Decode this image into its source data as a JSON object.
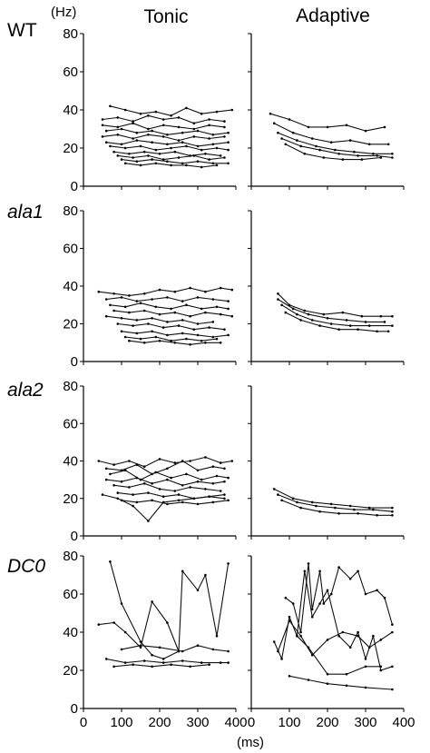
{
  "y_unit": "(Hz)",
  "x_unit": "(ms)",
  "column_titles": [
    "Tonic",
    "Adaptive"
  ],
  "row_labels": [
    "WT",
    "ala1",
    "ala2",
    "DC0"
  ],
  "x_ticks": [
    "0",
    "100",
    "200",
    "300",
    "400"
  ],
  "y_ticks": [
    "0",
    "20",
    "40",
    "60",
    "80"
  ],
  "chart_data": [
    {
      "type": "line",
      "row": "WT",
      "column": "Tonic",
      "xlim": [
        0,
        400
      ],
      "ylim": [
        0,
        80
      ],
      "grid": false,
      "series": [
        {
          "x": [
            70,
            110,
            150,
            190,
            230,
            270,
            310,
            350,
            390
          ],
          "values": [
            42,
            40,
            38,
            39,
            37,
            41,
            38,
            39,
            40
          ]
        },
        {
          "x": [
            50,
            90,
            130,
            170,
            210,
            250,
            290,
            330,
            370
          ],
          "values": [
            35,
            36,
            34,
            37,
            35,
            36,
            33,
            35,
            34
          ]
        },
        {
          "x": [
            50,
            90,
            130,
            170,
            210,
            250,
            290,
            330,
            370
          ],
          "values": [
            32,
            31,
            33,
            30,
            32,
            31,
            30,
            32,
            31
          ]
        },
        {
          "x": [
            60,
            100,
            140,
            180,
            220,
            260,
            300,
            340,
            380
          ],
          "values": [
            29,
            30,
            28,
            29,
            27,
            28,
            29,
            27,
            28
          ]
        },
        {
          "x": [
            50,
            90,
            130,
            170,
            210,
            250,
            290,
            330,
            370
          ],
          "values": [
            26,
            27,
            25,
            27,
            26,
            24,
            26,
            25,
            26
          ]
        },
        {
          "x": [
            60,
            100,
            140,
            180,
            220,
            260,
            300,
            340,
            380
          ],
          "values": [
            23,
            22,
            24,
            23,
            22,
            23,
            21,
            22,
            23
          ]
        },
        {
          "x": [
            70,
            110,
            150,
            190,
            230,
            270,
            310,
            350,
            380
          ],
          "values": [
            21,
            20,
            21,
            19,
            20,
            21,
            19,
            20,
            19
          ]
        },
        {
          "x": [
            80,
            120,
            160,
            200,
            240,
            280,
            320,
            360
          ],
          "values": [
            18,
            17,
            18,
            17,
            18,
            16,
            17,
            16
          ]
        },
        {
          "x": [
            90,
            130,
            170,
            210,
            250,
            290,
            330,
            370
          ],
          "values": [
            16,
            15,
            16,
            14,
            15,
            16,
            14,
            15
          ]
        },
        {
          "x": [
            100,
            140,
            180,
            220,
            260,
            300,
            340,
            380
          ],
          "values": [
            14,
            13,
            14,
            13,
            12,
            13,
            12,
            12
          ]
        },
        {
          "x": [
            110,
            150,
            190,
            230,
            270,
            310,
            350
          ],
          "values": [
            12,
            11,
            12,
            11,
            11,
            10,
            11
          ]
        }
      ]
    },
    {
      "type": "line",
      "row": "WT",
      "column": "Adaptive",
      "xlim": [
        0,
        400
      ],
      "ylim": [
        0,
        80
      ],
      "grid": false,
      "series": [
        {
          "x": [
            50,
            100,
            150,
            200,
            250,
            300,
            350
          ],
          "values": [
            38,
            35,
            31,
            31,
            32,
            29,
            31
          ]
        },
        {
          "x": [
            60,
            110,
            160,
            210,
            260,
            310,
            360
          ],
          "values": [
            33,
            28,
            25,
            23,
            24,
            22,
            22
          ]
        },
        {
          "x": [
            70,
            120,
            170,
            220,
            270,
            320,
            370
          ],
          "values": [
            28,
            24,
            21,
            19,
            18,
            17,
            17
          ]
        },
        {
          "x": [
            80,
            130,
            180,
            230,
            280,
            330,
            370
          ],
          "values": [
            25,
            21,
            19,
            17,
            16,
            16,
            15
          ]
        },
        {
          "x": [
            90,
            140,
            190,
            240,
            290,
            340
          ],
          "values": [
            22,
            17,
            15,
            14,
            14,
            15
          ]
        }
      ]
    },
    {
      "type": "line",
      "row": "ala1",
      "column": "Tonic",
      "xlim": [
        0,
        400
      ],
      "ylim": [
        0,
        80
      ],
      "grid": false,
      "series": [
        {
          "x": [
            40,
            80,
            120,
            160,
            200,
            240,
            280,
            320,
            360,
            390
          ],
          "values": [
            37,
            36,
            35,
            36,
            38,
            37,
            39,
            37,
            39,
            38
          ]
        },
        {
          "x": [
            60,
            100,
            140,
            180,
            220,
            260,
            300,
            340,
            380
          ],
          "values": [
            33,
            34,
            32,
            33,
            34,
            32,
            34,
            33,
            32
          ]
        },
        {
          "x": [
            70,
            110,
            150,
            190,
            230,
            270,
            310,
            350,
            380
          ],
          "values": [
            30,
            29,
            31,
            29,
            28,
            30,
            28,
            29,
            28
          ]
        },
        {
          "x": [
            80,
            120,
            160,
            200,
            240,
            280,
            320,
            360,
            390
          ],
          "values": [
            27,
            26,
            27,
            25,
            26,
            24,
            26,
            25,
            24
          ]
        },
        {
          "x": [
            60,
            100,
            140,
            180,
            220,
            260,
            300,
            340
          ],
          "values": [
            24,
            23,
            22,
            23,
            21,
            22,
            20,
            21
          ]
        },
        {
          "x": [
            90,
            130,
            170,
            210,
            250,
            290,
            330,
            370
          ],
          "values": [
            20,
            19,
            20,
            18,
            19,
            17,
            18,
            17
          ]
        },
        {
          "x": [
            100,
            140,
            180,
            220,
            260,
            300,
            340,
            380
          ],
          "values": [
            16,
            15,
            16,
            14,
            15,
            14,
            13,
            14
          ]
        },
        {
          "x": [
            110,
            150,
            190,
            230,
            270,
            310,
            350
          ],
          "values": [
            13,
            12,
            13,
            11,
            12,
            11,
            12
          ]
        },
        {
          "x": [
            120,
            160,
            200,
            240,
            280,
            320,
            360
          ],
          "values": [
            11,
            10,
            11,
            10,
            9,
            10,
            10
          ]
        }
      ]
    },
    {
      "type": "line",
      "row": "ala1",
      "column": "Adaptive",
      "xlim": [
        0,
        400
      ],
      "ylim": [
        0,
        80
      ],
      "grid": false,
      "series": [
        {
          "x": [
            70,
            100,
            140,
            190,
            240,
            290,
            340,
            370
          ],
          "values": [
            36,
            30,
            27,
            25,
            26,
            24,
            24,
            24
          ]
        },
        {
          "x": [
            70,
            110,
            150,
            200,
            250,
            300,
            350
          ],
          "values": [
            33,
            28,
            25,
            23,
            22,
            21,
            21
          ]
        },
        {
          "x": [
            80,
            120,
            160,
            210,
            260,
            310,
            370
          ],
          "values": [
            30,
            25,
            22,
            20,
            19,
            19,
            19
          ]
        },
        {
          "x": [
            90,
            130,
            180,
            230,
            280,
            330,
            360
          ],
          "values": [
            26,
            22,
            19,
            17,
            17,
            16,
            16
          ]
        }
      ]
    },
    {
      "type": "line",
      "row": "ala2",
      "column": "Tonic",
      "xlim": [
        0,
        400
      ],
      "ylim": [
        0,
        80
      ],
      "grid": false,
      "series": [
        {
          "x": [
            40,
            80,
            120,
            160,
            200,
            240,
            280,
            320,
            360,
            390
          ],
          "values": [
            40,
            38,
            40,
            37,
            41,
            39,
            40,
            42,
            39,
            40
          ]
        },
        {
          "x": [
            60,
            100,
            140,
            180,
            220,
            260,
            300,
            340,
            370
          ],
          "values": [
            36,
            35,
            38,
            33,
            36,
            40,
            35,
            37,
            36
          ]
        },
        {
          "x": [
            70,
            110,
            150,
            190,
            230,
            270,
            310,
            350,
            380
          ],
          "values": [
            33,
            35,
            30,
            34,
            31,
            33,
            30,
            32,
            31
          ]
        },
        {
          "x": [
            60,
            100,
            140,
            180,
            220,
            260,
            300,
            340,
            370
          ],
          "values": [
            30,
            29,
            31,
            28,
            30,
            27,
            29,
            28,
            29
          ]
        },
        {
          "x": [
            80,
            120,
            160,
            200,
            240,
            280,
            320,
            360
          ],
          "values": [
            27,
            26,
            28,
            25,
            24,
            26,
            25,
            24
          ]
        },
        {
          "x": [
            90,
            130,
            170,
            210,
            250,
            290,
            330,
            370
          ],
          "values": [
            23,
            22,
            23,
            21,
            22,
            20,
            21,
            20
          ]
        },
        {
          "x": [
            50,
            90,
            130,
            170,
            210,
            250,
            290,
            330,
            370
          ],
          "values": [
            22,
            20,
            16,
            8,
            18,
            19,
            20,
            21,
            22
          ]
        },
        {
          "x": [
            100,
            140,
            180,
            220,
            260,
            300,
            340,
            380
          ],
          "values": [
            19,
            18,
            19,
            17,
            18,
            17,
            18,
            19
          ]
        }
      ]
    },
    {
      "type": "line",
      "row": "ala2",
      "column": "Adaptive",
      "xlim": [
        0,
        400
      ],
      "ylim": [
        0,
        80
      ],
      "grid": false,
      "series": [
        {
          "x": [
            60,
            110,
            160,
            210,
            260,
            310,
            370
          ],
          "values": [
            25,
            20,
            18,
            17,
            16,
            15,
            15
          ]
        },
        {
          "x": [
            70,
            120,
            170,
            220,
            270,
            320,
            370
          ],
          "values": [
            22,
            18,
            16,
            15,
            14,
            14,
            13
          ]
        },
        {
          "x": [
            80,
            130,
            180,
            230,
            280,
            330,
            370
          ],
          "values": [
            19,
            15,
            13,
            12,
            12,
            11,
            11
          ]
        }
      ]
    },
    {
      "type": "line",
      "row": "DC0",
      "column": "Tonic",
      "xlim": [
        0,
        400
      ],
      "ylim": [
        0,
        80
      ],
      "grid": false,
      "series": [
        {
          "x": [
            70,
            100,
            150,
            180,
            210,
            250,
            260,
            300,
            320,
            350,
            380
          ],
          "values": [
            77,
            55,
            35,
            28,
            26,
            30,
            72,
            62,
            70,
            38,
            76
          ]
        },
        {
          "x": [
            40,
            80,
            110,
            150,
            180,
            220,
            250
          ],
          "values": [
            44,
            45,
            40,
            32,
            56,
            45,
            30
          ]
        },
        {
          "x": [
            100,
            150,
            200,
            260,
            300,
            340,
            380
          ],
          "values": [
            31,
            33,
            32,
            30,
            33,
            31,
            30
          ]
        },
        {
          "x": [
            60,
            110,
            160,
            210,
            260,
            310,
            360,
            380
          ],
          "values": [
            26,
            24,
            25,
            24,
            25,
            24,
            24,
            24
          ]
        },
        {
          "x": [
            80,
            130,
            180,
            230,
            280,
            330
          ],
          "values": [
            22,
            23,
            22,
            23,
            22,
            23
          ]
        }
      ]
    },
    {
      "type": "line",
      "row": "DC0",
      "column": "Adaptive",
      "xlim": [
        0,
        400
      ],
      "ylim": [
        0,
        80
      ],
      "grid": false,
      "series": [
        {
          "x": [
            90,
            110,
            130,
            150,
            160,
            180,
            190,
            210,
            230,
            260,
            280,
            300,
            330,
            350,
            370
          ],
          "values": [
            58,
            55,
            40,
            76,
            52,
            72,
            55,
            60,
            74,
            68,
            72,
            60,
            62,
            58,
            44
          ]
        },
        {
          "x": [
            60,
            80,
            100,
            120,
            140,
            160,
            180,
            200,
            230,
            260,
            280,
            300,
            320,
            340,
            370
          ],
          "values": [
            35,
            26,
            48,
            38,
            72,
            48,
            55,
            62,
            38,
            32,
            40,
            26,
            38,
            20,
            22
          ]
        },
        {
          "x": [
            70,
            100,
            130,
            160,
            200,
            240,
            280,
            310,
            340,
            370
          ],
          "values": [
            30,
            46,
            38,
            28,
            36,
            40,
            38,
            32,
            36,
            40
          ]
        },
        {
          "x": [
            120,
            150,
            200,
            250,
            300,
            340
          ],
          "values": [
            38,
            32,
            18,
            18,
            22,
            22
          ]
        },
        {
          "x": [
            100,
            150,
            200,
            250,
            300,
            370
          ],
          "values": [
            17,
            15,
            13,
            12,
            11,
            10
          ]
        }
      ]
    }
  ]
}
